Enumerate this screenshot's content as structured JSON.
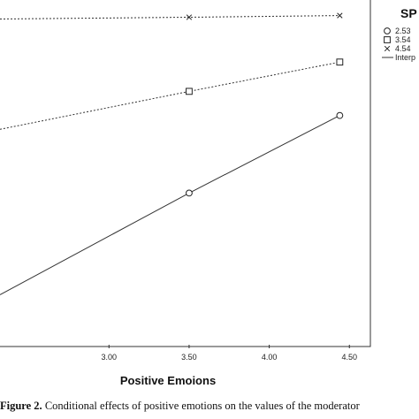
{
  "chart_data": {
    "type": "line",
    "title": "",
    "xlabel": "Positive Emoions",
    "ylabel": "",
    "xlim": [
      2.32,
      4.62
    ],
    "ylim": [
      0,
      1
    ],
    "x_ticks": [
      "3.00",
      "3.50",
      "4.00",
      "4.50"
    ],
    "x_tick_values": [
      3.0,
      3.5,
      4.0,
      4.5
    ],
    "legend_title": "SP",
    "legend_position": "top-right",
    "series": [
      {
        "name": "2.53",
        "marker": "circle",
        "dash": "solid",
        "x": [
          2.32,
          3.5,
          4.44
        ],
        "y": [
          0.145,
          0.44,
          0.665
        ]
      },
      {
        "name": "3.54",
        "marker": "square",
        "dash": "dotted",
        "x": [
          2.32,
          3.5,
          4.44
        ],
        "y": [
          0.625,
          0.735,
          0.82
        ]
      },
      {
        "name": "4.54",
        "marker": "x",
        "dash": "dotted",
        "x": [
          2.32,
          3.5,
          4.44
        ],
        "y": [
          0.945,
          0.95,
          0.955
        ]
      }
    ],
    "legend_line_label": "Interp"
  },
  "caption": {
    "label": "Figure 2.",
    "text": " Conditional effects of positive emotions on the values of the moderator"
  }
}
